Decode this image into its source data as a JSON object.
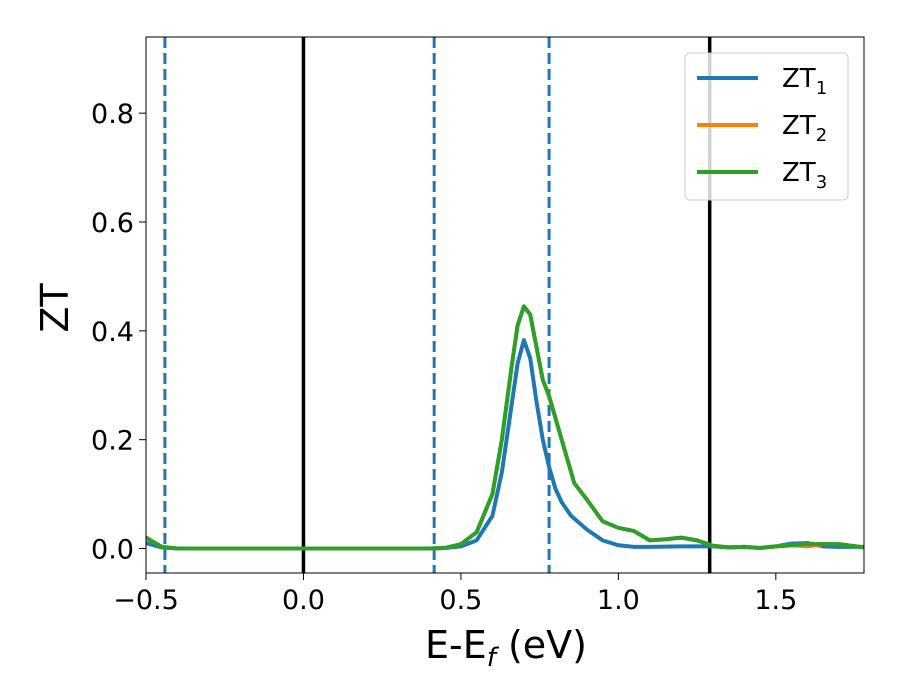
{
  "chart_data": {
    "type": "line",
    "xlabel": "E-E",
    "xlabel_sub": "f",
    "xlabel_unit": " (eV)",
    "ylabel": "ZT",
    "xlim": [
      -0.5,
      1.78
    ],
    "ylim": [
      -0.045,
      0.94
    ],
    "grid": false,
    "legend_position": "top-right",
    "x_ticks": [
      -0.5,
      0.0,
      0.5,
      1.0,
      1.5
    ],
    "x_tick_labels": [
      "−0.5",
      "0.0",
      "0.5",
      "1.0",
      "1.5"
    ],
    "y_ticks": [
      0.0,
      0.2,
      0.4,
      0.6,
      0.8
    ],
    "y_tick_labels": [
      "0.0",
      "0.2",
      "0.4",
      "0.6",
      "0.8"
    ],
    "vlines": [
      {
        "x": 0.0,
        "style": "solid",
        "color": "#000000"
      },
      {
        "x": 1.29,
        "style": "solid",
        "color": "#000000"
      },
      {
        "x": -0.44,
        "style": "dashed",
        "color": "#1f77b4"
      },
      {
        "x": 0.415,
        "style": "dashed",
        "color": "#1f77b4"
      },
      {
        "x": 0.78,
        "style": "dashed",
        "color": "#1f77b4"
      }
    ],
    "series": [
      {
        "name": "ZT",
        "subscript": "1",
        "color": "#1f77b4",
        "x": [
          -0.5,
          -0.45,
          -0.4,
          0.0,
          0.4,
          0.45,
          0.5,
          0.55,
          0.6,
          0.63,
          0.66,
          0.68,
          0.7,
          0.72,
          0.74,
          0.76,
          0.78,
          0.8,
          0.82,
          0.85,
          0.9,
          0.95,
          1.0,
          1.05,
          1.1,
          1.2,
          1.3,
          1.35,
          1.4,
          1.45,
          1.5,
          1.55,
          1.6,
          1.65,
          1.7,
          1.78
        ],
        "y": [
          0.01,
          0.002,
          0.0,
          0.0,
          0.0,
          0.001,
          0.004,
          0.015,
          0.06,
          0.14,
          0.26,
          0.34,
          0.383,
          0.35,
          0.27,
          0.2,
          0.15,
          0.11,
          0.085,
          0.06,
          0.035,
          0.015,
          0.006,
          0.003,
          0.003,
          0.004,
          0.004,
          0.002,
          0.003,
          0.001,
          0.004,
          0.009,
          0.01,
          0.004,
          0.003,
          0.003
        ]
      },
      {
        "name": "ZT",
        "subscript": "2",
        "color": "#ff7f0e",
        "x": [
          -0.5,
          -0.45,
          -0.4,
          0.0,
          0.4,
          0.45,
          0.5,
          0.55,
          0.6,
          0.63,
          0.66,
          0.68,
          0.7,
          0.72,
          0.74,
          0.76,
          0.78,
          0.8,
          0.83,
          0.86,
          0.9,
          0.95,
          1.0,
          1.05,
          1.1,
          1.15,
          1.2,
          1.25,
          1.3,
          1.35,
          1.4,
          1.45,
          1.5,
          1.55,
          1.6,
          1.65,
          1.7,
          1.78
        ],
        "y": [
          0.02,
          0.003,
          0.0,
          0.0,
          0.0,
          0.001,
          0.008,
          0.03,
          0.1,
          0.2,
          0.33,
          0.41,
          0.445,
          0.43,
          0.37,
          0.31,
          0.28,
          0.24,
          0.18,
          0.12,
          0.09,
          0.05,
          0.038,
          0.032,
          0.015,
          0.017,
          0.02,
          0.015,
          0.005,
          0.002,
          0.003,
          0.001,
          0.004,
          0.006,
          0.004,
          0.008,
          0.008,
          0.002
        ]
      },
      {
        "name": "ZT",
        "subscript": "3",
        "color": "#2ca02c",
        "x": [
          -0.5,
          -0.45,
          -0.4,
          0.0,
          0.4,
          0.45,
          0.5,
          0.55,
          0.6,
          0.63,
          0.66,
          0.68,
          0.7,
          0.72,
          0.74,
          0.76,
          0.78,
          0.8,
          0.83,
          0.86,
          0.9,
          0.95,
          1.0,
          1.05,
          1.1,
          1.15,
          1.2,
          1.25,
          1.3,
          1.35,
          1.4,
          1.45,
          1.5,
          1.55,
          1.6,
          1.65,
          1.7,
          1.78
        ],
        "y": [
          0.02,
          0.003,
          0.0,
          0.0,
          0.0,
          0.001,
          0.008,
          0.03,
          0.1,
          0.2,
          0.33,
          0.41,
          0.445,
          0.43,
          0.37,
          0.31,
          0.28,
          0.24,
          0.18,
          0.12,
          0.09,
          0.05,
          0.038,
          0.032,
          0.015,
          0.017,
          0.02,
          0.015,
          0.005,
          0.002,
          0.003,
          0.001,
          0.004,
          0.006,
          0.008,
          0.008,
          0.008,
          0.002
        ]
      }
    ]
  }
}
